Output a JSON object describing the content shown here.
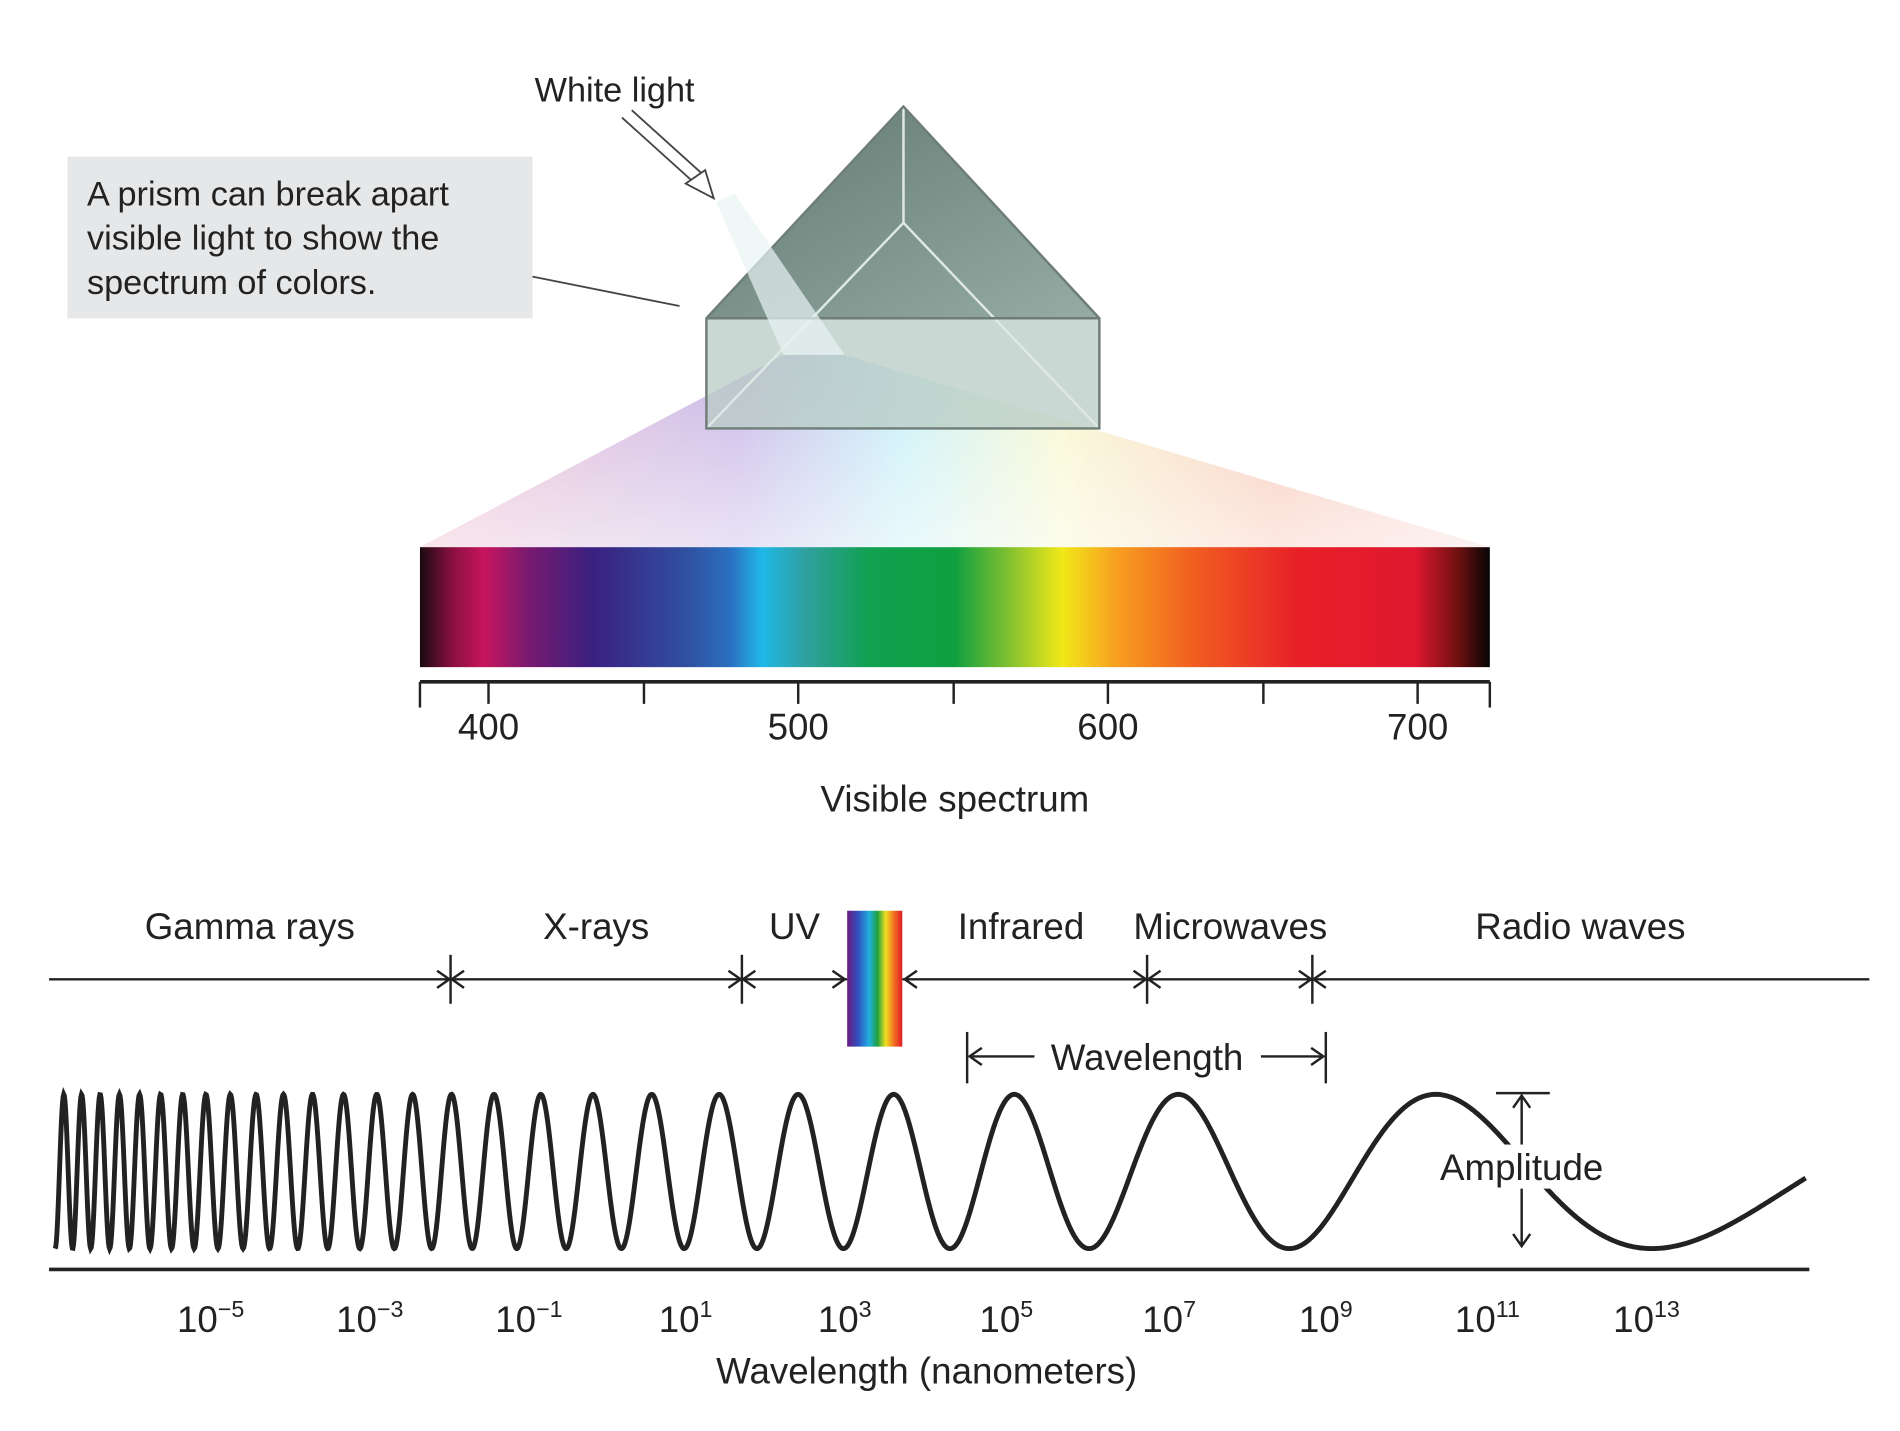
{
  "white_light": "White light",
  "callout": [
    "A prism can break apart",
    "visible light to show the",
    "spectrum of colors."
  ],
  "visible_spectrum": {
    "ticks": [
      "400",
      "500",
      "600",
      "700"
    ],
    "label": "Visible spectrum"
  },
  "bands": [
    "Gamma rays",
    "X-rays",
    "UV",
    "Infrared",
    "Microwaves",
    "Radio waves"
  ],
  "wavelength_label": "Wavelength",
  "amplitude_label": "Amplitude",
  "axis": {
    "ticks": [
      {
        "base": "10",
        "exponent": "−5"
      },
      {
        "base": "10",
        "exponent": "−3"
      },
      {
        "base": "10",
        "exponent": "−1"
      },
      {
        "base": "10",
        "exponent": "1"
      },
      {
        "base": "10",
        "exponent": "3"
      },
      {
        "base": "10",
        "exponent": "5"
      },
      {
        "base": "10",
        "exponent": "7"
      },
      {
        "base": "10",
        "exponent": "9"
      },
      {
        "base": "10",
        "exponent": "11"
      },
      {
        "base": "10",
        "exponent": "13"
      }
    ],
    "label": "Wavelength (nanometers)"
  }
}
